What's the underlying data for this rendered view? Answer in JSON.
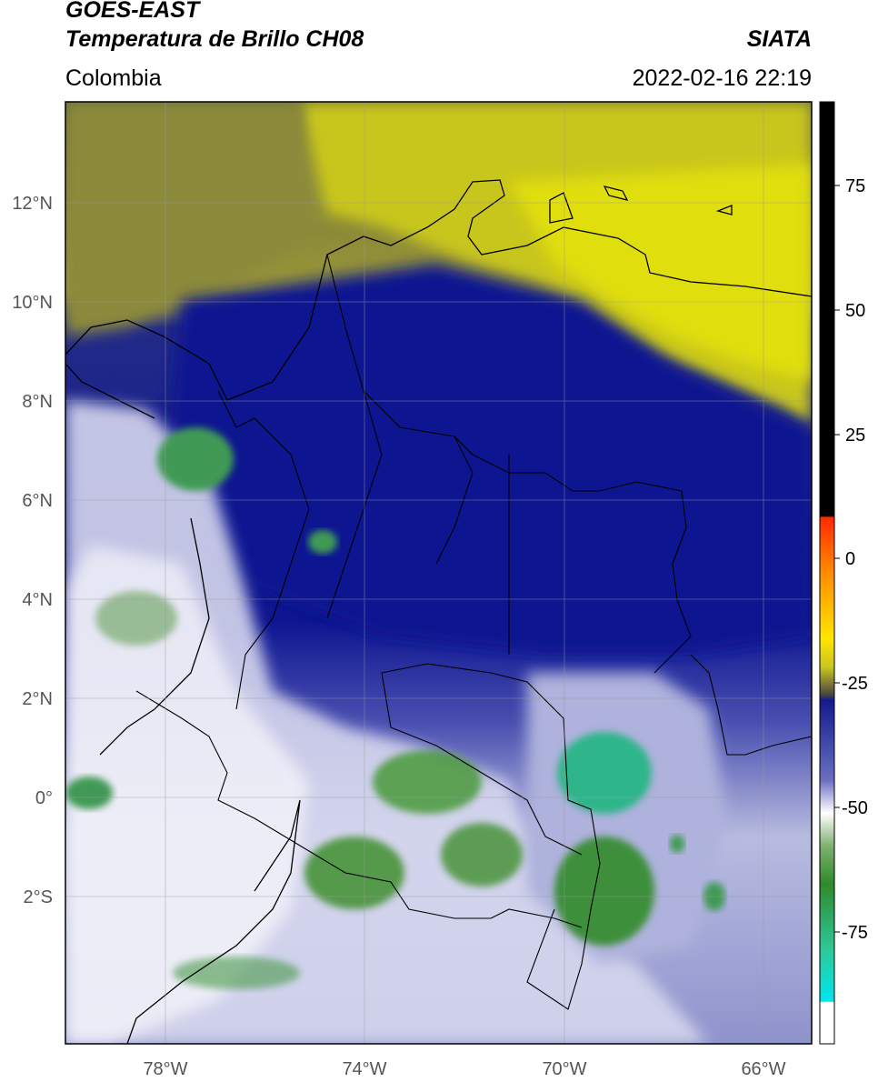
{
  "header": {
    "title_line1": "GOES-EAST",
    "title_line2": "Temperatura de Brillo CH08",
    "region": "Colombia",
    "brand": "SIATA",
    "timestamp": "2022-02-16 22:19"
  },
  "map": {
    "lat_ticks": [
      "12°N",
      "10°N",
      "8°N",
      "6°N",
      "4°N",
      "2°N",
      "0°",
      "2°S"
    ],
    "lon_ticks": [
      "78°W",
      "74°W",
      "70°W",
      "66°W"
    ]
  },
  "colorbar": {
    "ticks": [
      "75",
      "50",
      "25",
      "0",
      "-25",
      "-50",
      "-75"
    ]
  },
  "colors": {
    "cold_blue": "#1a1f8a",
    "dry_yellow": "#c8c61e",
    "convective_green": "#3f8f2f",
    "deep_teal": "#2ec8a0",
    "coast_black": "#000000"
  }
}
